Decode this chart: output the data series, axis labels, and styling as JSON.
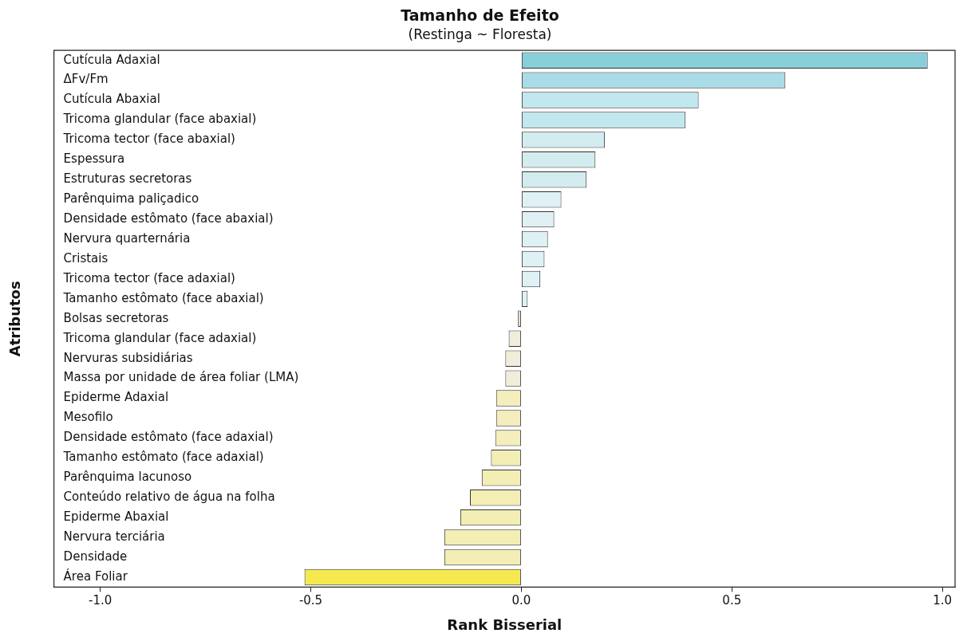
{
  "chart_data": {
    "type": "bar",
    "orientation": "horizontal",
    "title": "Tamanho de Efeito",
    "subtitle": "(Restinga ~ Floresta)",
    "xlabel": "Rank Bisserial",
    "ylabel": "Atributos",
    "categories": [
      "Cutícula Adaxial",
      "ΔFv/Fm",
      "Cutícula Abaxial",
      "Tricoma glandular (face abaxial)",
      "Tricoma tector (face abaxial)",
      "Espessura",
      "Estruturas secretoras",
      "Parênquima paliçadico",
      "Densidade estômato (face abaxial)",
      "Nervura quarternária",
      "Cristais",
      "Tricoma tector (face adaxial)",
      "Tamanho estômato (face abaxial)",
      "Bolsas secretoras",
      "Tricoma glandular (face adaxial)",
      "Nervuras subsidiárias",
      "Massa por unidade de área foliar (LMA)",
      "Epiderme Adaxial",
      "Mesofilo",
      "Densidade estômato (face adaxial)",
      "Tamanho estômato (face adaxial)",
      "Parênquima lacunoso",
      "Conteúdo relativo de água na folha",
      "Epiderme Abaxial",
      "Nervura terciária",
      "Densidade",
      "Área Foliar"
    ],
    "values": [
      0.965,
      0.627,
      0.421,
      0.39,
      0.198,
      0.176,
      0.155,
      0.095,
      0.078,
      0.063,
      0.055,
      0.045,
      0.015,
      -0.008,
      -0.03,
      -0.038,
      -0.038,
      -0.06,
      -0.06,
      -0.062,
      -0.072,
      -0.094,
      -0.122,
      -0.145,
      -0.183,
      -0.183,
      -0.515
    ],
    "colors": [
      "#89cfd9",
      "#a9dce6",
      "#c1e8ef",
      "#c1e8ef",
      "#d3ecf0",
      "#d3ecf0",
      "#d3ecf0",
      "#dff1f4",
      "#dff1f4",
      "#dff1f4",
      "#dff1f4",
      "#dff1f4",
      "#dff1f4",
      "#e8ddc8",
      "#f1eddb",
      "#f1eddb",
      "#f1eddb",
      "#f3eebb",
      "#f3eebb",
      "#f3eebb",
      "#f3eeb3",
      "#f3eeb3",
      "#f3eeb3",
      "#f3eeb3",
      "#f3eeb3",
      "#f3eeb3",
      "#f5e94f"
    ],
    "xlim": [
      -1.11,
      1.03
    ],
    "xticks": [
      {
        "value": -1,
        "label": "-1.0"
      },
      {
        "value": -0.5,
        "label": "-0.5"
      },
      {
        "value": 0,
        "label": "0.0"
      },
      {
        "value": 0.5,
        "label": "0.5"
      },
      {
        "value": 1,
        "label": "1.0"
      }
    ],
    "grid": false,
    "legend": false
  }
}
